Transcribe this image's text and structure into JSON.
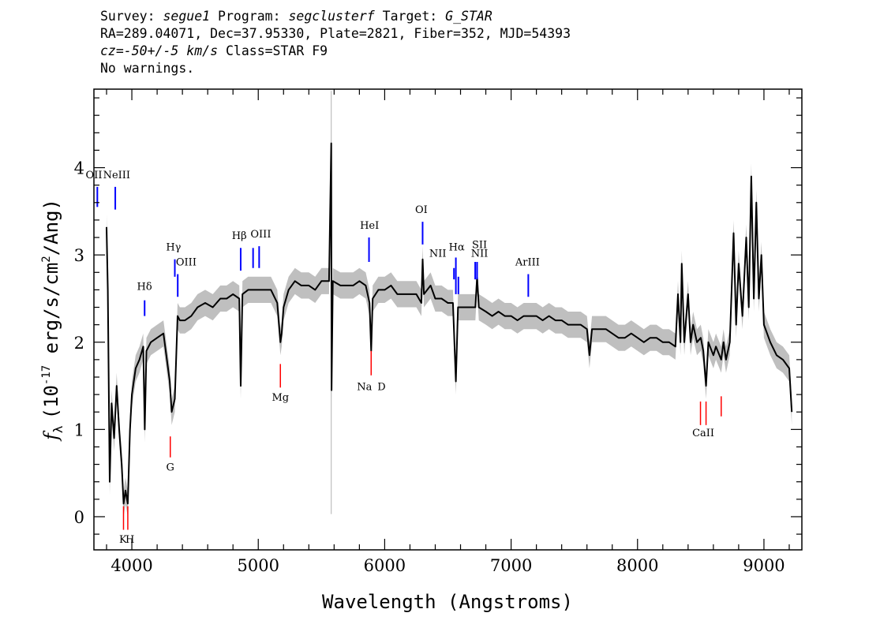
{
  "header": {
    "survey_label": "Survey:",
    "survey": "segue1",
    "program_label": "Program:",
    "program": "segclusterf",
    "target_label": "Target:",
    "target": "G_STAR",
    "line2": "RA=289.04071, Dec=37.95330, Plate=2821, Fiber=352, MJD=54393",
    "cz": "cz=-50+/-5 km/s",
    "class": "Class=STAR F9",
    "warnings": "No warnings."
  },
  "colors": {
    "flux": "#000000",
    "error_band": "#bfbfbf",
    "emission_marker": "#0000ff",
    "absorption_marker": "#ff0000",
    "frame": "#000000"
  },
  "chart_data": {
    "type": "line",
    "title": "",
    "xlabel": "Wavelength (Angstroms)",
    "ylabel_prefix": "f",
    "ylabel_sub": "λ",
    "ylabel_exp_open": "(10",
    "ylabel_exp": "-17",
    "ylabel_mid": " erg/s/cm",
    "ylabel_sq": "2",
    "ylabel_end": "/Ang)",
    "xlim": [
      3700,
      9300
    ],
    "ylim": [
      -0.38,
      4.9
    ],
    "xticks": [
      4000,
      5000,
      6000,
      7000,
      8000,
      9000
    ],
    "xtick_labels": [
      "4000",
      "5000",
      "6000",
      "7000",
      "8000",
      "9000"
    ],
    "yticks": [
      0,
      1,
      2,
      3,
      4
    ],
    "ytick_labels": [
      "0",
      "1",
      "2",
      "3",
      "4"
    ],
    "grid": false,
    "series": [
      {
        "points": [
          [
            3800,
            3.32
          ],
          [
            3810,
            2.6
          ],
          [
            3825,
            0.4
          ],
          [
            3840,
            1.3
          ],
          [
            3860,
            0.9
          ],
          [
            3880,
            1.5
          ],
          [
            3900,
            1.0
          ],
          [
            3920,
            0.6
          ],
          [
            3935,
            0.15
          ],
          [
            3950,
            0.3
          ],
          [
            3968,
            0.15
          ],
          [
            3985,
            1.0
          ],
          [
            4000,
            1.4
          ],
          [
            4030,
            1.7
          ],
          [
            4060,
            1.8
          ],
          [
            4090,
            1.95
          ],
          [
            4102,
            1.0
          ],
          [
            4115,
            1.9
          ],
          [
            4150,
            2.0
          ],
          [
            4200,
            2.05
          ],
          [
            4250,
            2.1
          ],
          [
            4300,
            1.55
          ],
          [
            4315,
            1.2
          ],
          [
            4340,
            1.35
          ],
          [
            4362,
            2.3
          ],
          [
            4380,
            2.25
          ],
          [
            4420,
            2.25
          ],
          [
            4470,
            2.3
          ],
          [
            4520,
            2.4
          ],
          [
            4580,
            2.45
          ],
          [
            4640,
            2.4
          ],
          [
            4700,
            2.5
          ],
          [
            4750,
            2.5
          ],
          [
            4800,
            2.55
          ],
          [
            4850,
            2.5
          ],
          [
            4861,
            1.5
          ],
          [
            4875,
            2.55
          ],
          [
            4920,
            2.6
          ],
          [
            4960,
            2.6
          ],
          [
            5000,
            2.6
          ],
          [
            5050,
            2.6
          ],
          [
            5100,
            2.6
          ],
          [
            5150,
            2.45
          ],
          [
            5175,
            2.0
          ],
          [
            5185,
            2.1
          ],
          [
            5200,
            2.4
          ],
          [
            5240,
            2.6
          ],
          [
            5290,
            2.7
          ],
          [
            5340,
            2.65
          ],
          [
            5400,
            2.65
          ],
          [
            5450,
            2.6
          ],
          [
            5500,
            2.7
          ],
          [
            5560,
            2.7
          ],
          [
            5577,
            4.28
          ],
          [
            5580,
            1.45
          ],
          [
            5590,
            2.7
          ],
          [
            5650,
            2.65
          ],
          [
            5700,
            2.65
          ],
          [
            5750,
            2.65
          ],
          [
            5800,
            2.7
          ],
          [
            5850,
            2.65
          ],
          [
            5880,
            2.45
          ],
          [
            5893,
            1.9
          ],
          [
            5905,
            2.5
          ],
          [
            5950,
            2.6
          ],
          [
            6000,
            2.6
          ],
          [
            6050,
            2.65
          ],
          [
            6100,
            2.55
          ],
          [
            6150,
            2.55
          ],
          [
            6200,
            2.55
          ],
          [
            6250,
            2.55
          ],
          [
            6290,
            2.45
          ],
          [
            6300,
            2.95
          ],
          [
            6310,
            2.55
          ],
          [
            6363,
            2.65
          ],
          [
            6400,
            2.5
          ],
          [
            6450,
            2.5
          ],
          [
            6500,
            2.45
          ],
          [
            6540,
            2.45
          ],
          [
            6563,
            1.55
          ],
          [
            6580,
            2.4
          ],
          [
            6620,
            2.4
          ],
          [
            6680,
            2.4
          ],
          [
            6717,
            2.4
          ],
          [
            6731,
            2.75
          ],
          [
            6745,
            2.4
          ],
          [
            6800,
            2.35
          ],
          [
            6850,
            2.3
          ],
          [
            6900,
            2.35
          ],
          [
            6950,
            2.3
          ],
          [
            7000,
            2.3
          ],
          [
            7050,
            2.25
          ],
          [
            7100,
            2.3
          ],
          [
            7150,
            2.3
          ],
          [
            7200,
            2.3
          ],
          [
            7250,
            2.25
          ],
          [
            7300,
            2.3
          ],
          [
            7350,
            2.25
          ],
          [
            7400,
            2.25
          ],
          [
            7450,
            2.2
          ],
          [
            7500,
            2.2
          ],
          [
            7550,
            2.2
          ],
          [
            7600,
            2.15
          ],
          [
            7620,
            1.85
          ],
          [
            7640,
            2.15
          ],
          [
            7700,
            2.15
          ],
          [
            7750,
            2.15
          ],
          [
            7800,
            2.1
          ],
          [
            7850,
            2.05
          ],
          [
            7900,
            2.05
          ],
          [
            7950,
            2.1
          ],
          [
            8000,
            2.05
          ],
          [
            8050,
            2.0
          ],
          [
            8100,
            2.05
          ],
          [
            8150,
            2.05
          ],
          [
            8200,
            2.0
          ],
          [
            8250,
            2.0
          ],
          [
            8300,
            1.95
          ],
          [
            8320,
            2.55
          ],
          [
            8340,
            2.0
          ],
          [
            8350,
            2.9
          ],
          [
            8370,
            2.0
          ],
          [
            8400,
            2.55
          ],
          [
            8420,
            2.0
          ],
          [
            8440,
            2.2
          ],
          [
            8470,
            2.0
          ],
          [
            8500,
            2.05
          ],
          [
            8520,
            1.9
          ],
          [
            8542,
            1.5
          ],
          [
            8560,
            2.0
          ],
          [
            8600,
            1.85
          ],
          [
            8620,
            1.95
          ],
          [
            8662,
            1.8
          ],
          [
            8680,
            2.0
          ],
          [
            8700,
            1.8
          ],
          [
            8730,
            2.0
          ],
          [
            8760,
            3.25
          ],
          [
            8780,
            2.2
          ],
          [
            8800,
            2.9
          ],
          [
            8830,
            2.3
          ],
          [
            8860,
            3.2
          ],
          [
            8880,
            2.4
          ],
          [
            8900,
            3.9
          ],
          [
            8920,
            2.5
          ],
          [
            8940,
            3.6
          ],
          [
            8960,
            2.5
          ],
          [
            8980,
            3.0
          ],
          [
            9000,
            2.2
          ],
          [
            9050,
            2.0
          ],
          [
            9100,
            1.85
          ],
          [
            9150,
            1.8
          ],
          [
            9200,
            1.7
          ],
          [
            9220,
            1.2
          ]
        ]
      }
    ],
    "error_band_halfwidth": 0.15,
    "spikes": [
      [
        5577,
        0.03,
        4.88
      ]
    ],
    "lines_emission": [
      {
        "label": "OII",
        "wave": 3727,
        "y0": 3.55,
        "y1": 3.78
      },
      {
        "label": "NeIII",
        "wave": 3869,
        "y0": 3.52,
        "y1": 3.78
      },
      {
        "label": "Hδ",
        "wave": 4101,
        "y0": 2.3,
        "y1": 2.48
      },
      {
        "label": "Hγ",
        "wave": 4340,
        "y0": 2.75,
        "y1": 2.95
      },
      {
        "label": "OIII",
        "wave": 4363,
        "y0": 2.52,
        "y1": 2.78
      },
      {
        "label": "Hβ",
        "wave": 4861,
        "y0": 2.82,
        "y1": 3.08
      },
      {
        "label": "OIII",
        "wave": 4959,
        "y0": 2.85,
        "y1": 3.08
      },
      {
        "label": "OIII",
        "wave": 5007,
        "y0": 2.85,
        "y1": 3.1
      },
      {
        "label": "HeI",
        "wave": 5876,
        "y0": 2.92,
        "y1": 3.2
      },
      {
        "label": "OI",
        "wave": 6300,
        "y0": 3.12,
        "y1": 3.38
      },
      {
        "label": "NII",
        "wave": 6548,
        "y0": 2.72,
        "y1": 2.85
      },
      {
        "label": "Hα",
        "wave": 6563,
        "y0": 2.55,
        "y1": 2.97
      },
      {
        "label": "NII",
        "wave": 6583,
        "y0": 2.55,
        "y1": 2.75
      },
      {
        "label": "SII",
        "wave": 6716,
        "y0": 2.72,
        "y1": 2.92
      },
      {
        "label": "SII",
        "wave": 6731,
        "y0": 2.72,
        "y1": 2.92
      },
      {
        "label": "ArIII",
        "wave": 7136,
        "y0": 2.52,
        "y1": 2.78
      }
    ],
    "line_labels_emission": [
      {
        "text": "OII",
        "wave": 3700,
        "y": 3.88
      },
      {
        "text": "NeIII",
        "wave": 3880,
        "y": 3.88
      },
      {
        "text": "Hδ",
        "wave": 4100,
        "y": 2.6
      },
      {
        "text": "Hγ",
        "wave": 4330,
        "y": 3.05
      },
      {
        "text": "OIII",
        "wave": 4430,
        "y": 2.88
      },
      {
        "text": "Hβ",
        "wave": 4850,
        "y": 3.18
      },
      {
        "text": "OIII",
        "wave": 5020,
        "y": 3.2
      },
      {
        "text": "HeI",
        "wave": 5880,
        "y": 3.3
      },
      {
        "text": "OI",
        "wave": 6290,
        "y": 3.48
      },
      {
        "text": "NII",
        "wave": 6420,
        "y": 2.98
      },
      {
        "text": "Hα",
        "wave": 6570,
        "y": 3.05
      },
      {
        "text": "SII",
        "wave": 6750,
        "y": 3.08
      },
      {
        "text": "NII",
        "wave": 6750,
        "y": 2.98
      },
      {
        "text": "ArIII",
        "wave": 7130,
        "y": 2.88
      }
    ],
    "lines_absorption": [
      {
        "label": "K",
        "wave": 3934,
        "y0": -0.15,
        "y1": 0.12
      },
      {
        "label": "H",
        "wave": 3968,
        "y0": -0.15,
        "y1": 0.12
      },
      {
        "label": "G",
        "wave": 4304,
        "y0": 0.68,
        "y1": 0.92
      },
      {
        "label": "Mg",
        "wave": 5175,
        "y0": 1.48,
        "y1": 1.75
      },
      {
        "label": "Na D",
        "wave": 5893,
        "y0": 1.62,
        "y1": 1.9
      },
      {
        "label": "CaII",
        "wave": 8498,
        "y0": 1.05,
        "y1": 1.32
      },
      {
        "label": "CaII",
        "wave": 8542,
        "y0": 1.05,
        "y1": 1.32
      },
      {
        "label": "CaII",
        "wave": 8662,
        "y0": 1.15,
        "y1": 1.38
      }
    ],
    "line_labels_absorption": [
      {
        "text": "K",
        "wave": 3930,
        "y": -0.3
      },
      {
        "text": "H",
        "wave": 3985,
        "y": -0.3
      },
      {
        "text": "G",
        "wave": 4304,
        "y": 0.53
      },
      {
        "text": "Mg",
        "wave": 5175,
        "y": 1.33
      },
      {
        "text": "Na",
        "wave": 5840,
        "y": 1.45
      },
      {
        "text": "D",
        "wave": 5975,
        "y": 1.45
      },
      {
        "text": "CaII",
        "wave": 8520,
        "y": 0.92
      }
    ]
  }
}
